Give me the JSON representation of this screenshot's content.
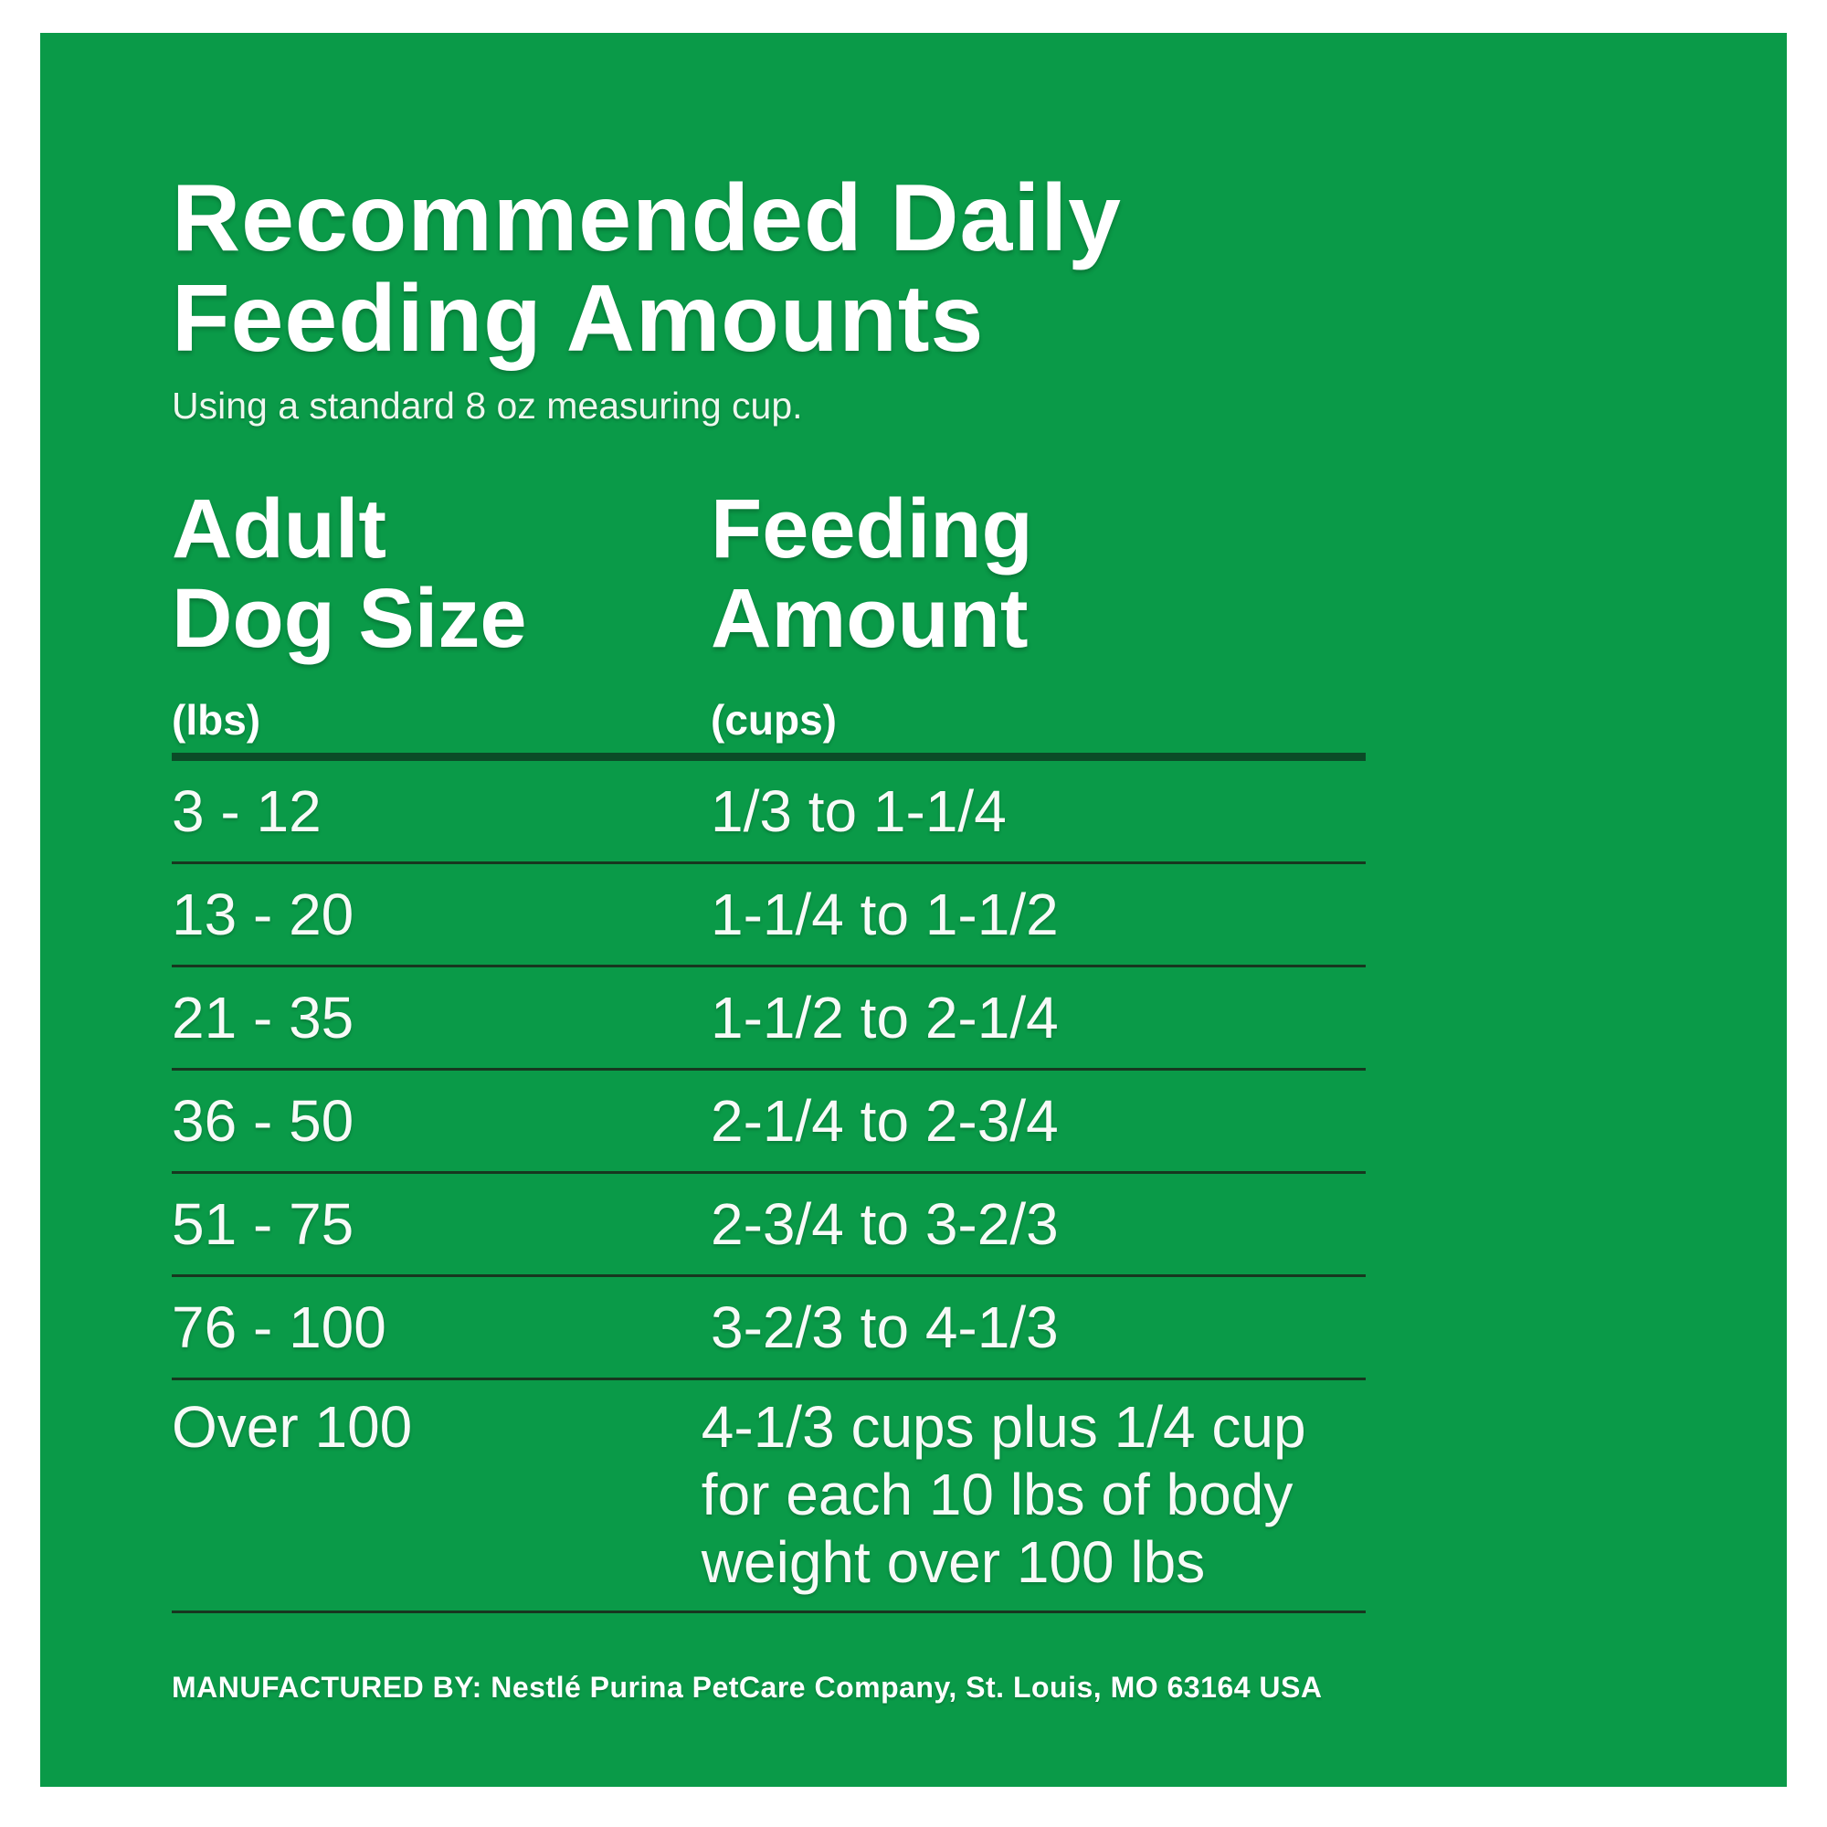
{
  "colors": {
    "panel_green": "#0a9a48",
    "rule_thick": "#0b4b27",
    "rule_thin": "#17371f",
    "text_white": "#ffffff"
  },
  "title": {
    "line1": "Recommended Daily",
    "line2": "Feeding Amounts"
  },
  "subtitle": "Using a standard 8 oz measuring cup.",
  "table": {
    "col1": {
      "header_line1": "Adult",
      "header_line2": "Dog Size",
      "unit": "(lbs)"
    },
    "col2": {
      "header_line1": "Feeding",
      "header_line2": "Amount",
      "unit": "(cups)"
    },
    "rows": [
      {
        "size": "3 - 12",
        "amount": "1/3 to 1-1/4"
      },
      {
        "size": "13 - 20",
        "amount": "1-1/4 to 1-1/2"
      },
      {
        "size": "21 - 35",
        "amount": "1-1/2 to 2-1/4"
      },
      {
        "size": "36 - 50",
        "amount": "2-1/4 to 2-3/4"
      },
      {
        "size": "51 - 75",
        "amount": "2-3/4 to 3-2/3"
      },
      {
        "size": "76 - 100",
        "amount": "3-2/3 to 4-1/3"
      },
      {
        "size": "Over 100",
        "amount": "4-1/3 cups plus 1/4 cup for each 10 lbs of body weight over 100 lbs"
      }
    ]
  },
  "footer": "MANUFACTURED BY: Nestlé Purina PetCare Company, St. Louis, MO 63164 USA"
}
